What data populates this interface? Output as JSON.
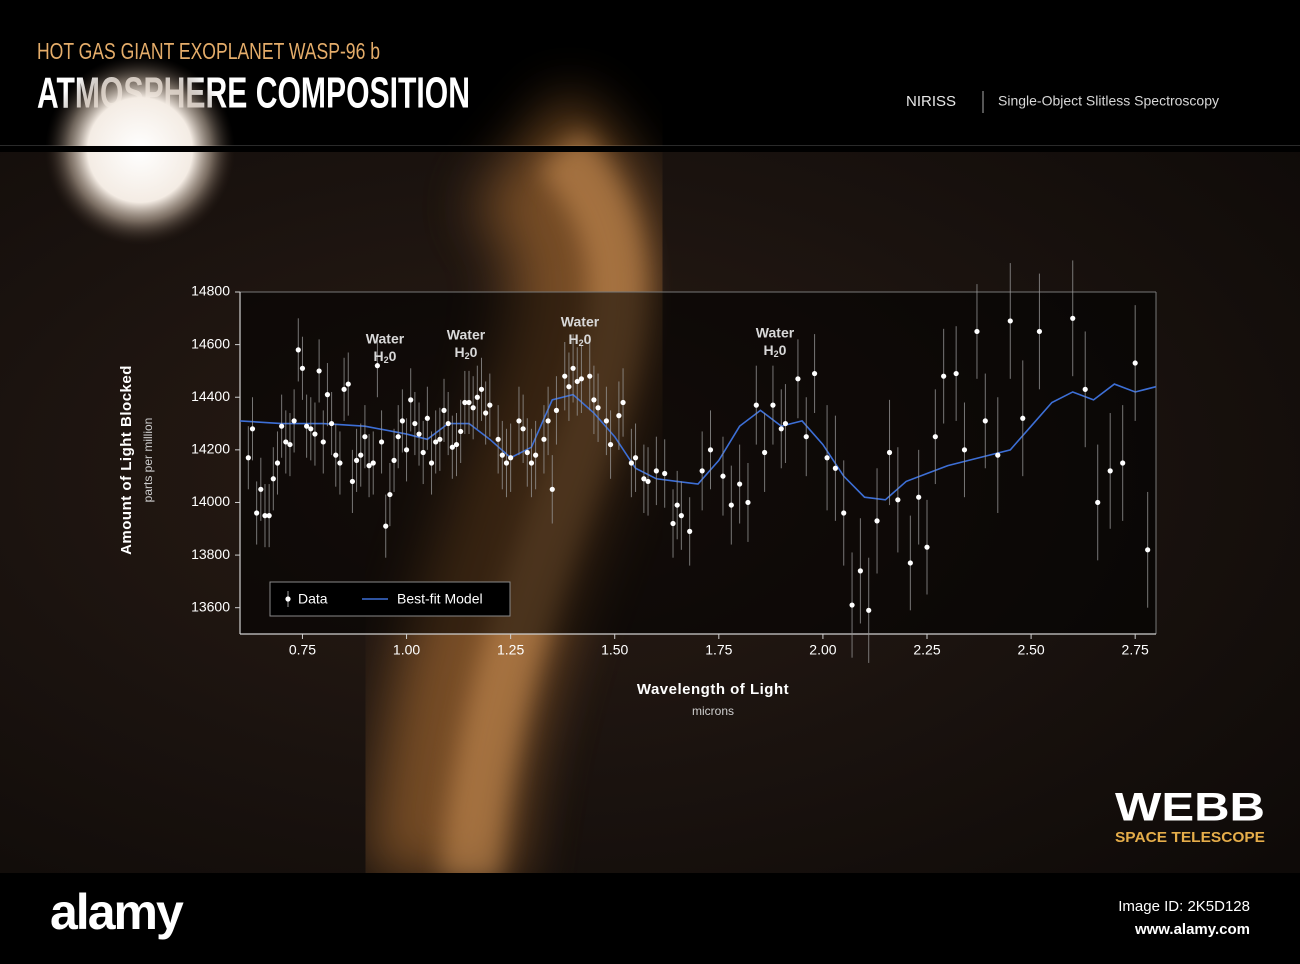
{
  "header": {
    "subtitle": "HOT GAS GIANT EXOPLANET WASP-96 b",
    "title": "ATMOSPHERE COMPOSITION",
    "instrument": "NIRISS",
    "mode": "Single-Object Slitless Spectroscopy"
  },
  "chart_data": {
    "type": "scatter",
    "x_label": "Wavelength of Light",
    "x_unit": "microns",
    "y_label": "Amount of Light Blocked",
    "y_unit": "parts per million",
    "xlim": [
      0.6,
      2.8
    ],
    "ylim": [
      13500,
      14800
    ],
    "xticks": [
      0.75,
      {
        "value": 1,
        "label": "1.00"
      },
      1.25,
      {
        "value": 1.5,
        "label": "1.50"
      },
      1.75,
      {
        "value": 2,
        "label": "2.00"
      },
      2.25,
      {
        "value": 2.5,
        "label": "2.50"
      },
      2.75
    ],
    "yticks": [
      13600,
      13800,
      14000,
      14200,
      14400,
      14600,
      14800
    ],
    "grid": false,
    "legend": "bottom-left",
    "annotations": [
      {
        "text": "Water",
        "formula": "H",
        "subscript": "2",
        "formula_end": "0"
      },
      {
        "text": "Water",
        "formula": "H",
        "subscript": "2",
        "formula_end": "0"
      },
      {
        "text": "Water",
        "formula": "H",
        "subscript": "2",
        "formula_end": "0"
      },
      {
        "text": "Water",
        "formula": "H",
        "subscript": "2",
        "formula_end": "0"
      }
    ],
    "series": [
      {
        "name": "Data",
        "type": "errorbar",
        "color": "#ffffff",
        "x": [
          0.62,
          0.63,
          0.64,
          0.65,
          0.66,
          0.67,
          0.68,
          0.69,
          0.7,
          0.71,
          0.72,
          0.73,
          0.74,
          0.75,
          0.76,
          0.77,
          0.78,
          0.79,
          0.8,
          0.81,
          0.82,
          0.83,
          0.84,
          0.85,
          0.86,
          0.87,
          0.88,
          0.89,
          0.9,
          0.91,
          0.92,
          0.93,
          0.94,
          0.95,
          0.96,
          0.97,
          0.98,
          0.99,
          1.0,
          1.01,
          1.02,
          1.03,
          1.04,
          1.05,
          1.06,
          1.07,
          1.08,
          1.09,
          1.1,
          1.11,
          1.12,
          1.13,
          1.14,
          1.15,
          1.16,
          1.17,
          1.18,
          1.19,
          1.2,
          1.22,
          1.23,
          1.24,
          1.25,
          1.27,
          1.28,
          1.29,
          1.3,
          1.31,
          1.33,
          1.34,
          1.35,
          1.36,
          1.38,
          1.39,
          1.4,
          1.41,
          1.42,
          1.44,
          1.45,
          1.46,
          1.48,
          1.49,
          1.51,
          1.52,
          1.54,
          1.55,
          1.57,
          1.58,
          1.6,
          1.62,
          1.64,
          1.65,
          1.66,
          1.68,
          1.71,
          1.73,
          1.76,
          1.78,
          1.8,
          1.82,
          1.84,
          1.86,
          1.88,
          1.9,
          1.91,
          1.94,
          1.96,
          1.98,
          2.01,
          2.03,
          2.05,
          2.07,
          2.09,
          2.11,
          2.13,
          2.16,
          2.18,
          2.21,
          2.23,
          2.25,
          2.27,
          2.29,
          2.32,
          2.34,
          2.37,
          2.39,
          2.42,
          2.45,
          2.48,
          2.52,
          2.6,
          2.63,
          2.66,
          2.69,
          2.72,
          2.75,
          2.78
        ],
        "values": [
          14170,
          14280,
          13960,
          14050,
          13950,
          13950,
          14090,
          14150,
          14290,
          14230,
          14220,
          14310,
          14580,
          14510,
          14290,
          14280,
          14260,
          14500,
          14230,
          14410,
          14300,
          14180,
          14150,
          14430,
          14450,
          14080,
          14160,
          14180,
          14250,
          14140,
          14150,
          14520,
          14230,
          13910,
          14030,
          14160,
          14250,
          14310,
          14200,
          14390,
          14300,
          14260,
          14190,
          14320,
          14150,
          14230,
          14240,
          14350,
          14300,
          14210,
          14220,
          14270,
          14380,
          14380,
          14360,
          14400,
          14430,
          14340,
          14370,
          14240,
          14180,
          14150,
          14170,
          14310,
          14280,
          14190,
          14150,
          14180,
          14240,
          14310,
          14050,
          14350,
          14480,
          14440,
          14510,
          14460,
          14470,
          14480,
          14390,
          14360,
          14310,
          14220,
          14330,
          14380,
          14150,
          14170,
          14090,
          14080,
          14120,
          14110,
          13920,
          13990,
          13950,
          13890,
          14120,
          14200,
          14100,
          13990,
          14070,
          14000,
          14370,
          14190,
          14370,
          14280,
          14300,
          14470,
          14250,
          14490,
          14170,
          14130,
          13960,
          13610,
          13740,
          13590,
          13930,
          14190,
          14010,
          13770,
          14020,
          13830,
          14250,
          14480,
          14490,
          14200,
          14650,
          14310,
          14180,
          14690,
          14320,
          14650,
          14700,
          14430,
          14000,
          14120,
          14150,
          14530,
          13820
        ],
        "errors": [
          120,
          120,
          120,
          120,
          120,
          120,
          120,
          120,
          120,
          120,
          120,
          120,
          120,
          120,
          120,
          120,
          120,
          120,
          120,
          120,
          120,
          120,
          120,
          120,
          120,
          120,
          120,
          120,
          120,
          120,
          120,
          120,
          120,
          120,
          120,
          120,
          120,
          120,
          120,
          120,
          120,
          120,
          120,
          120,
          120,
          120,
          120,
          120,
          120,
          120,
          120,
          120,
          120,
          120,
          120,
          120,
          120,
          120,
          120,
          130,
          130,
          130,
          130,
          130,
          130,
          130,
          130,
          130,
          130,
          130,
          130,
          130,
          130,
          130,
          130,
          130,
          130,
          130,
          130,
          130,
          130,
          130,
          130,
          130,
          130,
          130,
          130,
          130,
          130,
          130,
          130,
          130,
          130,
          130,
          150,
          150,
          150,
          150,
          150,
          150,
          150,
          150,
          150,
          150,
          150,
          150,
          150,
          150,
          200,
          200,
          200,
          200,
          200,
          200,
          200,
          200,
          200,
          180,
          180,
          180,
          180,
          180,
          180,
          180,
          180,
          180,
          220,
          220,
          220,
          220,
          220,
          220,
          220,
          220,
          220,
          220,
          220
        ]
      },
      {
        "name": "Best-fit Model",
        "type": "line",
        "color": "#3d6fd6",
        "x": [
          0.6,
          0.7,
          0.75,
          0.8,
          0.9,
          1.0,
          1.05,
          1.1,
          1.15,
          1.2,
          1.25,
          1.3,
          1.35,
          1.4,
          1.45,
          1.5,
          1.55,
          1.6,
          1.65,
          1.7,
          1.75,
          1.8,
          1.85,
          1.9,
          1.95,
          2.0,
          2.05,
          2.1,
          2.15,
          2.2,
          2.25,
          2.3,
          2.35,
          2.4,
          2.45,
          2.5,
          2.55,
          2.6,
          2.65,
          2.7,
          2.75,
          2.8
        ],
        "values": [
          14310,
          14300,
          14300,
          14300,
          14290,
          14260,
          14240,
          14300,
          14300,
          14240,
          14170,
          14210,
          14390,
          14410,
          14340,
          14250,
          14130,
          14090,
          14080,
          14070,
          14160,
          14290,
          14350,
          14290,
          14310,
          14220,
          14100,
          14020,
          14010,
          14080,
          14110,
          14140,
          14160,
          14180,
          14200,
          14290,
          14380,
          14420,
          14390,
          14450,
          14420,
          14440
        ]
      }
    ]
  },
  "branding": {
    "logo": "WEBB",
    "tagline": "SPACE TELESCOPE"
  },
  "footer": {
    "brand": "alamy",
    "image_id": "Image ID: 2K5D128",
    "url": "www.alamy.com"
  }
}
